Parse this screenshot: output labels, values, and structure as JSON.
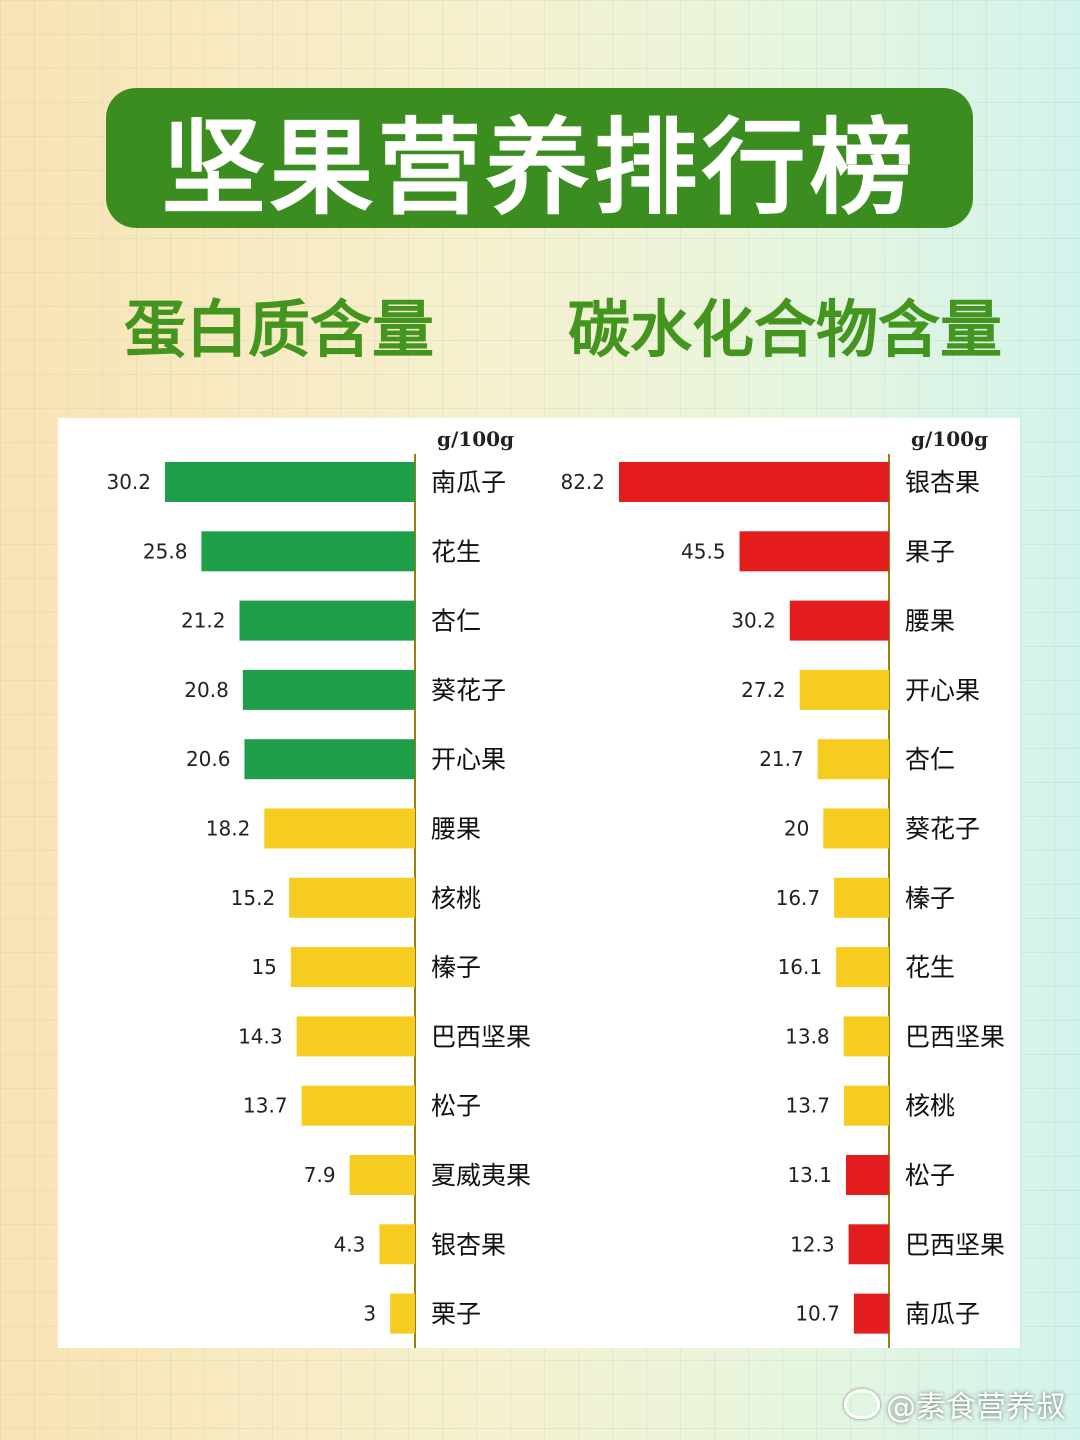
{
  "title": "坚果营养排行榜",
  "subtitles": {
    "protein": "蛋白质含量",
    "carb": "碳水化合物含量"
  },
  "watermark": "@素食营养叔",
  "colors": {
    "banner": "#3b8d1f",
    "green": "#1f9e4a",
    "yellow": "#f5cc1f",
    "red": "#e31d1d",
    "axis": "#9a7f0a"
  },
  "chart_data": [
    {
      "type": "bar",
      "orientation": "horizontal",
      "unit": "g/100g",
      "categories": [
        "南瓜子",
        "花生",
        "杏仁",
        "葵花子",
        "开心果",
        "腰果",
        "核桃",
        "榛子",
        "巴西坚果",
        "松子",
        "夏威夷果",
        "银杏果",
        "栗子"
      ],
      "values": [
        30.2,
        25.8,
        21.2,
        20.8,
        20.6,
        18.2,
        15.2,
        15,
        14.3,
        13.7,
        7.9,
        4.3,
        3
      ],
      "value_labels": [
        "30.2",
        "25.8",
        "21.2",
        "20.8",
        "20.6",
        "18.2",
        "15.2",
        "15",
        "14.3",
        "13.7",
        "7.9",
        "4.3",
        "3"
      ],
      "bar_colors": [
        "green",
        "green",
        "green",
        "green",
        "green",
        "yellow",
        "yellow",
        "yellow",
        "yellow",
        "yellow",
        "yellow",
        "yellow",
        "yellow"
      ],
      "xlim": [
        0,
        30.2
      ]
    },
    {
      "type": "bar",
      "orientation": "horizontal",
      "unit": "g/100g",
      "categories": [
        "银杏果",
        "果子",
        "腰果",
        "开心果",
        "杏仁",
        "葵花子",
        "榛子",
        "花生",
        "巴西坚果",
        "核桃",
        "松子",
        "巴西坚果",
        "南瓜子"
      ],
      "values": [
        82.2,
        45.5,
        30.2,
        27.2,
        21.7,
        20,
        16.7,
        16.1,
        13.8,
        13.7,
        13.1,
        12.3,
        10.7
      ],
      "value_labels": [
        "82.2",
        "45.5",
        "30.2",
        "27.2",
        "21.7",
        "20",
        "16.7",
        "16.1",
        "13.8",
        "13.7",
        "13.1",
        "12.3",
        "10.7"
      ],
      "bar_colors": [
        "red",
        "red",
        "red",
        "yellow",
        "yellow",
        "yellow",
        "yellow",
        "yellow",
        "yellow",
        "yellow",
        "red",
        "red",
        "red"
      ],
      "xlim": [
        0,
        82.2
      ]
    }
  ]
}
